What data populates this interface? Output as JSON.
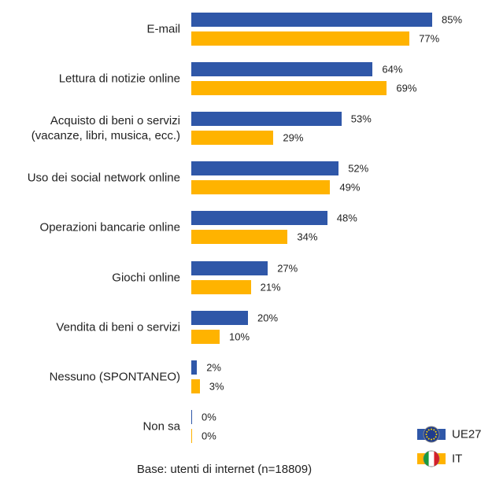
{
  "chart_data": {
    "type": "bar",
    "orientation": "horizontal",
    "categories": [
      "E-mail",
      "Lettura di notizie online",
      "Acquisto di beni o servizi\n(vacanze, libri, musica, ecc.)",
      "Uso dei social network online",
      "Operazioni bancarie online",
      "Giochi online",
      "Vendita di beni o servizi",
      "Nessuno (SPONTANEO)",
      "Non sa"
    ],
    "series": [
      {
        "name": "UE27",
        "color": "#2f57a8",
        "values": [
          85,
          64,
          53,
          52,
          48,
          27,
          20,
          2,
          0
        ],
        "value_labels": [
          "85%",
          "64%",
          "53%",
          "52%",
          "48%",
          "27%",
          "20%",
          "2%",
          "0%"
        ]
      },
      {
        "name": "IT",
        "color": "#ffb300",
        "values": [
          77,
          69,
          29,
          49,
          34,
          21,
          10,
          3,
          0
        ],
        "value_labels": [
          "77%",
          "69%",
          "29%",
          "49%",
          "34%",
          "21%",
          "10%",
          "3%",
          "0%"
        ]
      }
    ],
    "footnote": "Base: utenti di internet (n=18809)"
  }
}
